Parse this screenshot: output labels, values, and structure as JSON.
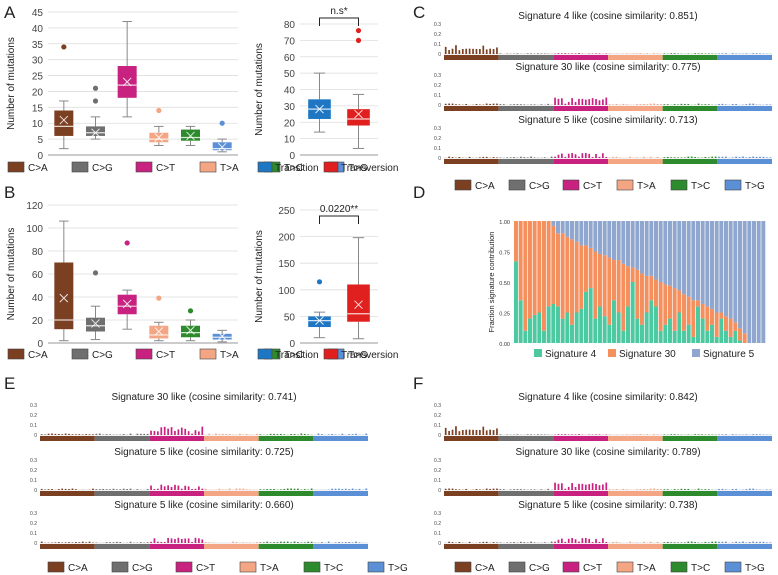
{
  "mutation_types": [
    "C>A",
    "C>G",
    "C>T",
    "T>A",
    "T>C",
    "T>G"
  ],
  "class_labels": [
    "Transition",
    "Transversion"
  ],
  "colors": {
    "C>A": "#7b3f22",
    "C>G": "#6f6f6f",
    "C>T": "#c8217f",
    "T>A": "#f4a584",
    "T>C": "#2d8a2d",
    "T>G": "#5b8fd6",
    "transition": "#1f77c4",
    "transversion": "#e0201e",
    "sig4": "#4cc9a0",
    "sig30": "#f48f5e",
    "sig5": "#8fa6cf"
  },
  "panels": {
    "A": {
      "letter": "A"
    },
    "B": {
      "letter": "B"
    },
    "C": {
      "letter": "C"
    },
    "D": {
      "letter": "D"
    },
    "E": {
      "letter": "E"
    },
    "F": {
      "letter": "F"
    }
  },
  "chart_data": [
    {
      "id": "A-left",
      "type": "box",
      "ylabel": "Number of mutations",
      "ylim": [
        0,
        45
      ],
      "yticks": [
        0,
        5,
        10,
        15,
        20,
        25,
        30,
        35,
        40,
        45
      ],
      "categories": [
        "C>A",
        "C>G",
        "C>T",
        "T>A",
        "T>C",
        "T>G"
      ],
      "boxes": [
        {
          "min": 2,
          "q1": 6,
          "median": 9,
          "q3": 14,
          "max": 17,
          "mean": 11,
          "outliers": [
            34
          ]
        },
        {
          "min": 5,
          "q1": 6,
          "median": 7,
          "q3": 9,
          "max": 12,
          "mean": 7,
          "outliers": [
            17,
            21
          ]
        },
        {
          "min": 12,
          "q1": 18,
          "median": 22,
          "q3": 28,
          "max": 42,
          "mean": 23,
          "outliers": []
        },
        {
          "min": 3,
          "q1": 4,
          "median": 5,
          "q3": 7,
          "max": 9,
          "mean": 5.5,
          "outliers": [
            14
          ]
        },
        {
          "min": 3,
          "q1": 4.5,
          "median": 5.5,
          "q3": 8,
          "max": 9,
          "mean": 6,
          "outliers": []
        },
        {
          "min": 1,
          "q1": 1.5,
          "median": 2,
          "q3": 4,
          "max": 5,
          "mean": 2.5,
          "outliers": [
            10
          ]
        }
      ]
    },
    {
      "id": "A-right",
      "type": "box",
      "ylabel": "Number of mutations",
      "ylim": [
        0,
        80
      ],
      "yticks": [
        0,
        10,
        20,
        30,
        40,
        50,
        60,
        70,
        80
      ],
      "categories": [
        "Transition",
        "Transversion"
      ],
      "significance": "n.s*",
      "boxes": [
        {
          "min": 14,
          "q1": 22,
          "median": 28,
          "q3": 34,
          "max": 50,
          "mean": 28,
          "outliers": []
        },
        {
          "min": 4,
          "q1": 18,
          "median": 22,
          "q3": 28,
          "max": 37,
          "mean": 25,
          "outliers": [
            70,
            76
          ]
        }
      ]
    },
    {
      "id": "B-left",
      "type": "box",
      "ylabel": "Number of mutations",
      "ylim": [
        0,
        120
      ],
      "yticks": [
        0,
        20,
        40,
        60,
        80,
        100,
        120
      ],
      "categories": [
        "C>A",
        "C>G",
        "C>T",
        "T>A",
        "T>C",
        "T>G"
      ],
      "boxes": [
        {
          "min": 2,
          "q1": 12,
          "median": 20,
          "q3": 70,
          "max": 106,
          "mean": 39,
          "outliers": []
        },
        {
          "min": 3,
          "q1": 10,
          "median": 15,
          "q3": 22,
          "max": 32,
          "mean": 17,
          "outliers": [
            61
          ]
        },
        {
          "min": 12,
          "q1": 25,
          "median": 32,
          "q3": 42,
          "max": 46,
          "mean": 34,
          "outliers": [
            87
          ]
        },
        {
          "min": 2,
          "q1": 4,
          "median": 7,
          "q3": 15,
          "max": 18,
          "mean": 10,
          "outliers": [
            39
          ]
        },
        {
          "min": 2,
          "q1": 5,
          "median": 9,
          "q3": 15,
          "max": 20,
          "mean": 11,
          "outliers": [
            28
          ]
        },
        {
          "min": 1,
          "q1": 3,
          "median": 5,
          "q3": 8,
          "max": 11,
          "mean": 6,
          "outliers": []
        }
      ]
    },
    {
      "id": "B-right",
      "type": "box",
      "ylabel": "Number of mutations",
      "ylim": [
        0,
        250
      ],
      "yticks": [
        0,
        50,
        100,
        150,
        200,
        250
      ],
      "categories": [
        "Transition",
        "Transversion"
      ],
      "significance": "0.0220**",
      "boxes": [
        {
          "min": 10,
          "q1": 30,
          "median": 42,
          "q3": 50,
          "max": 58,
          "mean": 42,
          "outliers": [
            115
          ]
        },
        {
          "min": 8,
          "q1": 40,
          "median": 55,
          "q3": 110,
          "max": 198,
          "mean": 72,
          "outliers": []
        }
      ]
    },
    {
      "id": "D",
      "type": "stacked-bar",
      "ylabel": "Fraction signature contribution",
      "ylim": [
        0,
        1
      ],
      "yticks": [
        "0.00",
        "0.25",
        "0.50",
        "0.75",
        "1.00"
      ],
      "series_names": [
        "Signature 4",
        "Signature 30",
        "Signature 5"
      ],
      "n_samples": 54,
      "sig4": [
        0.67,
        0.35,
        0.1,
        0.2,
        0.23,
        0.25,
        0.1,
        0.3,
        0.32,
        0.3,
        0.2,
        0.25,
        0.15,
        0.25,
        0.28,
        0.42,
        0.45,
        0.2,
        0.3,
        0.22,
        0.15,
        0.35,
        0.25,
        0.1,
        0.3,
        0.5,
        0.2,
        0.15,
        0.25,
        0.35,
        0.3,
        0.1,
        0.15,
        0.2,
        0.1,
        0.25,
        0.1,
        0.15,
        0.05,
        0.3,
        0.2,
        0.1,
        0.15,
        0.05,
        0.2,
        0.1,
        0.05,
        0.1,
        0.02,
        0,
        0,
        0,
        0,
        0
      ],
      "sig30": [
        0.33,
        0.65,
        0.9,
        0.8,
        0.77,
        0.75,
        0.9,
        0.7,
        0.64,
        0.6,
        0.7,
        0.62,
        0.7,
        0.58,
        0.52,
        0.38,
        0.33,
        0.55,
        0.43,
        0.5,
        0.55,
        0.33,
        0.43,
        0.55,
        0.33,
        0.12,
        0.4,
        0.42,
        0.3,
        0.2,
        0.22,
        0.4,
        0.33,
        0.27,
        0.35,
        0.18,
        0.3,
        0.23,
        0.3,
        0.05,
        0.12,
        0.2,
        0.13,
        0.2,
        0.05,
        0.12,
        0.15,
        0.07,
        0.1,
        0.08,
        0,
        0,
        0,
        0
      ]
    }
  ],
  "signature_panels": {
    "C": [
      {
        "title": "Signature 4 like (cosine similarity: 0.851)",
        "profile": "sig4"
      },
      {
        "title": "Signature 30 like (cosine similarity: 0.775)",
        "profile": "sig30"
      },
      {
        "title": "Signature 5 like (cosine similarity: 0.713)",
        "profile": "sig5"
      }
    ],
    "E": [
      {
        "title": "Signature 30 like (cosine similarity: 0.741)",
        "profile": "sig30"
      },
      {
        "title": "Signature 5 like (cosine similarity: 0.725)",
        "profile": "sig5"
      },
      {
        "title": "Signature 5 like (cosine similarity: 0.660)",
        "profile": "sig5"
      }
    ],
    "F": [
      {
        "title": "Signature 4 like (cosine similarity: 0.842)",
        "profile": "sig4"
      },
      {
        "title": "Signature 30 like (cosine similarity: 0.789)",
        "profile": "sig30"
      },
      {
        "title": "Signature 5 like (cosine similarity: 0.738)",
        "profile": "sig5"
      }
    ],
    "yticks": [
      "0.3",
      "0.2",
      "0.1",
      "0"
    ]
  }
}
